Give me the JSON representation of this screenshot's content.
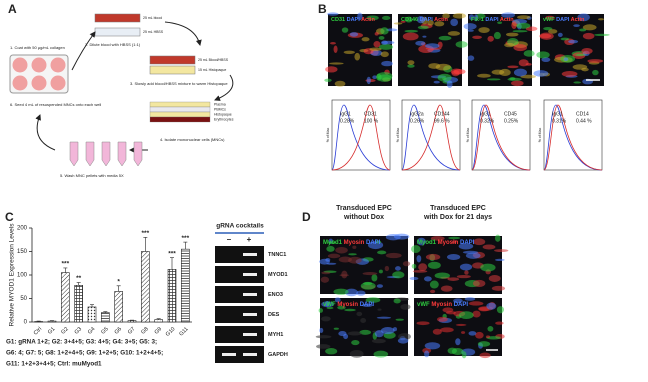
{
  "panel_a": {
    "label": "A",
    "steps": [
      "1. Coat with 50 µg/mL collagen",
      "2. Dilute blood with HBSS (1:1)",
      "3. Slowly add blood/HBSS mixture to warm Histopaque",
      "4. Isolate mononuclear cells (MNCs)",
      "5. Wash MNC pellets with media 5X",
      "6. Seed 4 mL of resuspended MNCs onto each well"
    ],
    "tube_labels": [
      "25 mL blood",
      "25 mL HBSS",
      "25 mL Blood/HBSS",
      "15 mL Histopaque",
      "Plasma",
      "PBMCs",
      "Histopaque",
      "Erythrocytes"
    ]
  },
  "panel_b": {
    "label": "B",
    "images": [
      [
        {
          "text": "CD31",
          "color": "#2ecc40"
        },
        {
          "text": "DAPI",
          "color": "#4a7dff"
        },
        {
          "text": "Actin",
          "color": "#ff3b3b"
        }
      ],
      [
        {
          "text": "CD146",
          "color": "#2ecc40"
        },
        {
          "text": "DAPI",
          "color": "#4a7dff"
        },
        {
          "text": "Actin",
          "color": "#ff3b3b"
        }
      ],
      [
        {
          "text": "Flk-1",
          "color": "#2ecc40"
        },
        {
          "text": "DAPI",
          "color": "#4a7dff"
        },
        {
          "text": "Actin",
          "color": "#ff3b3b"
        }
      ],
      [
        {
          "text": "vWF",
          "color": "#2ecc40"
        },
        {
          "text": "DAPI",
          "color": "#4a7dff"
        },
        {
          "text": "Actin",
          "color": "#ff3b3b"
        }
      ]
    ],
    "y_label": "% of Max",
    "histograms": [
      {
        "control": "IgG1",
        "control_pct": "0.28%",
        "marker": "CD31",
        "marker_pct": "100 %"
      },
      {
        "control": "IgG2a",
        "control_pct": "0.26%",
        "marker": "CD144",
        "marker_pct": "99.6 %"
      },
      {
        "control": "IgG1",
        "control_pct": "0.32%",
        "marker": "CD45",
        "marker_pct": "0.25%"
      },
      {
        "control": "IgG1",
        "control_pct": "0.31%",
        "marker": "CD14",
        "marker_pct": "0.44 %"
      }
    ]
  },
  "panel_c": {
    "label": "C",
    "chart": {
      "type": "bar",
      "y_label": "Relative MYOD1 Expression Levels",
      "categories": [
        "Ctrl",
        "G1",
        "G2",
        "G3",
        "G4",
        "G5",
        "G6",
        "G7",
        "G8",
        "G9",
        "G10",
        "G11"
      ],
      "values": [
        1,
        2,
        105,
        78,
        32,
        20,
        65,
        3,
        150,
        5,
        112,
        155
      ],
      "errors": [
        1,
        1,
        10,
        6,
        5,
        2,
        12,
        1,
        30,
        2,
        25,
        15
      ],
      "significance": [
        null,
        null,
        "***",
        "**",
        null,
        null,
        "*",
        null,
        "***",
        null,
        "***",
        "***"
      ],
      "ylim": [
        0,
        200
      ],
      "yticks": [
        0,
        50,
        100,
        150,
        200
      ]
    },
    "legend": [
      "G1: gRNA 1+2; G2: 3+4+5; G3: 4+5; G4: 3+5; G5: 3;",
      "G6: 4; G7: 5; G8: 1+2+4+5; G9: 1+2+5; G10: 1+2+4+5;",
      "G11: 1+2+3+4+5; Ctrl: muMyod1"
    ],
    "gel": {
      "title": "gRNA cocktails",
      "lanes": [
        "–",
        "+"
      ],
      "genes": [
        "TNNC1",
        "MYOD1",
        "ENO3",
        "DES",
        "MYH1",
        "GAPDH"
      ]
    }
  },
  "panel_d": {
    "label": "D",
    "columns": [
      [
        "Transduced EPC",
        "without Dox"
      ],
      [
        "Transduced EPC",
        "with Dox for 21 days"
      ]
    ],
    "rows": [
      [
        {
          "text": "Myod1",
          "color": "#2ecc40"
        },
        {
          "text": "Myosin",
          "color": "#ff3b3b"
        },
        {
          "text": "DAPI",
          "color": "#4a7dff"
        }
      ],
      [
        {
          "text": "vWF",
          "color": "#2ecc40"
        },
        {
          "text": "Myosin",
          "color": "#ff3b3b"
        },
        {
          "text": "DAPI",
          "color": "#4a7dff"
        }
      ]
    ]
  }
}
